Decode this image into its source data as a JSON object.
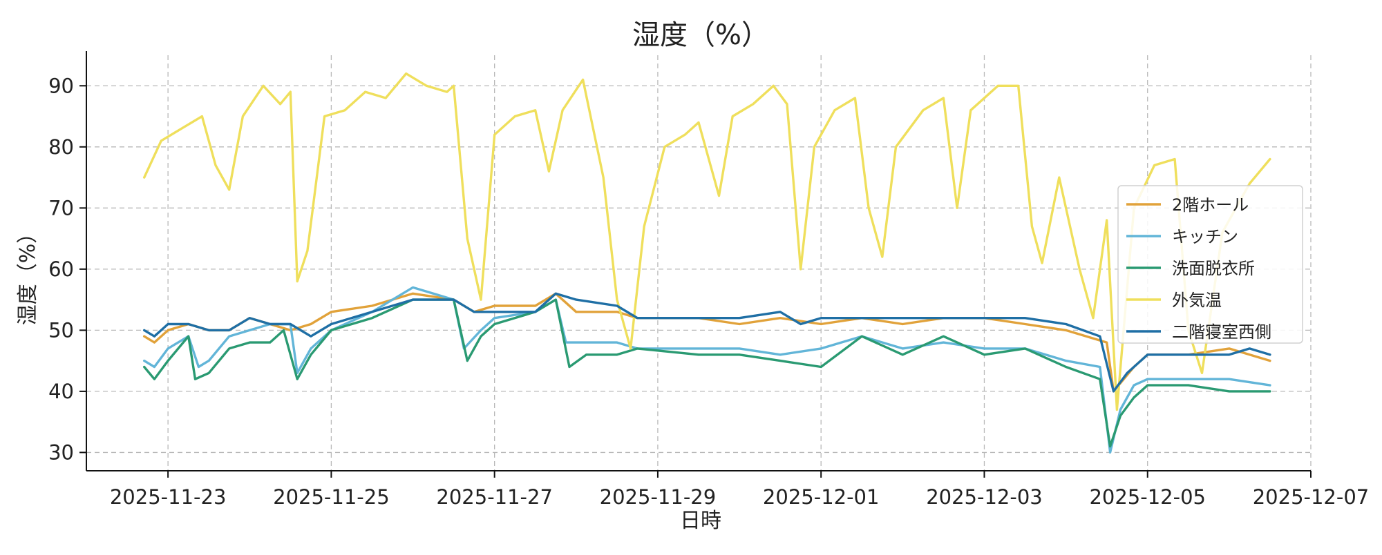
{
  "chart_data": {
    "type": "line",
    "title": "湿度（%）",
    "xlabel": "日時",
    "ylabel": "湿度（%）",
    "x_range": [
      "2025-11-22",
      "2025-12-07"
    ],
    "ylim": [
      27,
      95
    ],
    "x_ticks": [
      "2025-11-23",
      "2025-11-25",
      "2025-11-27",
      "2025-11-29",
      "2025-12-01",
      "2025-12-03",
      "2025-12-05",
      "2025-12-07"
    ],
    "y_ticks": [
      30,
      40,
      50,
      60,
      70,
      80,
      90
    ],
    "grid": true,
    "legend_position": "right",
    "series": [
      {
        "name": "2階ホール",
        "color": "#E1A23A",
        "points": [
          [
            "2025-11-22 17:00",
            49
          ],
          [
            "2025-11-22 20:00",
            48
          ],
          [
            "2025-11-23 00:00",
            50
          ],
          [
            "2025-11-23 06:00",
            51
          ],
          [
            "2025-11-23 12:00",
            50
          ],
          [
            "2025-11-23 18:00",
            50
          ],
          [
            "2025-11-24 00:00",
            52
          ],
          [
            "2025-11-24 06:00",
            51
          ],
          [
            "2025-11-24 12:00",
            50
          ],
          [
            "2025-11-24 18:00",
            51
          ],
          [
            "2025-11-25 00:00",
            53
          ],
          [
            "2025-11-25 12:00",
            54
          ],
          [
            "2025-11-26 00:00",
            56
          ],
          [
            "2025-11-26 12:00",
            55
          ],
          [
            "2025-11-26 18:00",
            53
          ],
          [
            "2025-11-27 00:00",
            54
          ],
          [
            "2025-11-27 12:00",
            54
          ],
          [
            "2025-11-27 18:00",
            56
          ],
          [
            "2025-11-28 00:00",
            53
          ],
          [
            "2025-11-28 12:00",
            53
          ],
          [
            "2025-11-28 18:00",
            52
          ],
          [
            "2025-11-29 12:00",
            52
          ],
          [
            "2025-11-30 00:00",
            51
          ],
          [
            "2025-11-30 12:00",
            52
          ],
          [
            "2025-12-01 00:00",
            51
          ],
          [
            "2025-12-01 12:00",
            52
          ],
          [
            "2025-12-02 00:00",
            51
          ],
          [
            "2025-12-02 12:00",
            52
          ],
          [
            "2025-12-03 00:00",
            52
          ],
          [
            "2025-12-03 12:00",
            51
          ],
          [
            "2025-12-04 00:00",
            50
          ],
          [
            "2025-12-04 06:00",
            49
          ],
          [
            "2025-12-04 12:00",
            48
          ],
          [
            "2025-12-04 14:00",
            40
          ],
          [
            "2025-12-04 20:00",
            44
          ],
          [
            "2025-12-05 00:00",
            46
          ],
          [
            "2025-12-05 12:00",
            46
          ],
          [
            "2025-12-06 00:00",
            47
          ],
          [
            "2025-12-06 06:00",
            46
          ],
          [
            "2025-12-06 12:00",
            45
          ]
        ]
      },
      {
        "name": "キッチン",
        "color": "#62B5D8",
        "points": [
          [
            "2025-11-22 17:00",
            45
          ],
          [
            "2025-11-22 20:00",
            44
          ],
          [
            "2025-11-23 00:00",
            47
          ],
          [
            "2025-11-23 06:00",
            49
          ],
          [
            "2025-11-23 09:00",
            44
          ],
          [
            "2025-11-23 12:00",
            45
          ],
          [
            "2025-11-23 18:00",
            49
          ],
          [
            "2025-11-24 00:00",
            50
          ],
          [
            "2025-11-24 06:00",
            51
          ],
          [
            "2025-11-24 12:00",
            51
          ],
          [
            "2025-11-24 14:00",
            43
          ],
          [
            "2025-11-24 18:00",
            47
          ],
          [
            "2025-11-25 00:00",
            50
          ],
          [
            "2025-11-25 12:00",
            53
          ],
          [
            "2025-11-26 00:00",
            57
          ],
          [
            "2025-11-26 06:00",
            56
          ],
          [
            "2025-11-26 12:00",
            55
          ],
          [
            "2025-11-26 15:00",
            47
          ],
          [
            "2025-11-26 20:00",
            50
          ],
          [
            "2025-11-27 00:00",
            52
          ],
          [
            "2025-11-27 12:00",
            53
          ],
          [
            "2025-11-27 18:00",
            55
          ],
          [
            "2025-11-27 21:00",
            48
          ],
          [
            "2025-11-28 00:00",
            48
          ],
          [
            "2025-11-28 12:00",
            48
          ],
          [
            "2025-11-28 18:00",
            47
          ],
          [
            "2025-11-29 12:00",
            47
          ],
          [
            "2025-11-30 00:00",
            47
          ],
          [
            "2025-11-30 12:00",
            46
          ],
          [
            "2025-12-01 00:00",
            47
          ],
          [
            "2025-12-01 12:00",
            49
          ],
          [
            "2025-12-02 00:00",
            47
          ],
          [
            "2025-12-02 12:00",
            48
          ],
          [
            "2025-12-03 00:00",
            47
          ],
          [
            "2025-12-03 12:00",
            47
          ],
          [
            "2025-12-04 00:00",
            45
          ],
          [
            "2025-12-04 10:00",
            44
          ],
          [
            "2025-12-04 13:00",
            30
          ],
          [
            "2025-12-04 16:00",
            37
          ],
          [
            "2025-12-04 20:00",
            41
          ],
          [
            "2025-12-05 00:00",
            42
          ],
          [
            "2025-12-05 12:00",
            42
          ],
          [
            "2025-12-06 00:00",
            42
          ],
          [
            "2025-12-06 12:00",
            41
          ]
        ]
      },
      {
        "name": "洗面脱衣所",
        "color": "#2A9A72",
        "points": [
          [
            "2025-11-22 17:00",
            44
          ],
          [
            "2025-11-22 20:00",
            42
          ],
          [
            "2025-11-23 00:00",
            45
          ],
          [
            "2025-11-23 06:00",
            49
          ],
          [
            "2025-11-23 08:00",
            42
          ],
          [
            "2025-11-23 12:00",
            43
          ],
          [
            "2025-11-23 18:00",
            47
          ],
          [
            "2025-11-24 00:00",
            48
          ],
          [
            "2025-11-24 06:00",
            48
          ],
          [
            "2025-11-24 10:00",
            50
          ],
          [
            "2025-11-24 14:00",
            42
          ],
          [
            "2025-11-24 18:00",
            46
          ],
          [
            "2025-11-25 00:00",
            50
          ],
          [
            "2025-11-25 12:00",
            52
          ],
          [
            "2025-11-26 00:00",
            55
          ],
          [
            "2025-11-26 06:00",
            55
          ],
          [
            "2025-11-26 12:00",
            55
          ],
          [
            "2025-11-26 16:00",
            45
          ],
          [
            "2025-11-26 20:00",
            49
          ],
          [
            "2025-11-27 00:00",
            51
          ],
          [
            "2025-11-27 12:00",
            53
          ],
          [
            "2025-11-27 18:00",
            55
          ],
          [
            "2025-11-27 22:00",
            44
          ],
          [
            "2025-11-28 03:00",
            46
          ],
          [
            "2025-11-28 12:00",
            46
          ],
          [
            "2025-11-28 18:00",
            47
          ],
          [
            "2025-11-29 12:00",
            46
          ],
          [
            "2025-11-30 00:00",
            46
          ],
          [
            "2025-11-30 12:00",
            45
          ],
          [
            "2025-12-01 00:00",
            44
          ],
          [
            "2025-12-01 12:00",
            49
          ],
          [
            "2025-12-02 00:00",
            46
          ],
          [
            "2025-12-02 12:00",
            49
          ],
          [
            "2025-12-03 00:00",
            46
          ],
          [
            "2025-12-03 12:00",
            47
          ],
          [
            "2025-12-04 00:00",
            44
          ],
          [
            "2025-12-04 10:00",
            42
          ],
          [
            "2025-12-04 13:00",
            31
          ],
          [
            "2025-12-04 16:00",
            36
          ],
          [
            "2025-12-04 20:00",
            39
          ],
          [
            "2025-12-05 00:00",
            41
          ],
          [
            "2025-12-05 12:00",
            41
          ],
          [
            "2025-12-06 00:00",
            40
          ],
          [
            "2025-12-06 12:00",
            40
          ]
        ]
      },
      {
        "name": "外気温",
        "color": "#EFDF5C",
        "points": [
          [
            "2025-11-22 17:00",
            75
          ],
          [
            "2025-11-22 22:00",
            81
          ],
          [
            "2025-11-23 04:00",
            83
          ],
          [
            "2025-11-23 10:00",
            85
          ],
          [
            "2025-11-23 14:00",
            77
          ],
          [
            "2025-11-23 18:00",
            73
          ],
          [
            "2025-11-23 22:00",
            85
          ],
          [
            "2025-11-24 04:00",
            90
          ],
          [
            "2025-11-24 09:00",
            87
          ],
          [
            "2025-11-24 12:00",
            89
          ],
          [
            "2025-11-24 14:00",
            58
          ],
          [
            "2025-11-24 17:00",
            63
          ],
          [
            "2025-11-24 22:00",
            85
          ],
          [
            "2025-11-25 04:00",
            86
          ],
          [
            "2025-11-25 10:00",
            89
          ],
          [
            "2025-11-25 16:00",
            88
          ],
          [
            "2025-11-25 22:00",
            92
          ],
          [
            "2025-11-26 04:00",
            90
          ],
          [
            "2025-11-26 10:00",
            89
          ],
          [
            "2025-11-26 12:00",
            90
          ],
          [
            "2025-11-26 16:00",
            65
          ],
          [
            "2025-11-26 20:00",
            55
          ],
          [
            "2025-11-27 00:00",
            82
          ],
          [
            "2025-11-27 06:00",
            85
          ],
          [
            "2025-11-27 12:00",
            86
          ],
          [
            "2025-11-27 16:00",
            76
          ],
          [
            "2025-11-27 20:00",
            86
          ],
          [
            "2025-11-28 02:00",
            91
          ],
          [
            "2025-11-28 08:00",
            75
          ],
          [
            "2025-11-28 12:00",
            55
          ],
          [
            "2025-11-28 16:00",
            47
          ],
          [
            "2025-11-28 20:00",
            67
          ],
          [
            "2025-11-29 02:00",
            80
          ],
          [
            "2025-11-29 08:00",
            82
          ],
          [
            "2025-11-29 12:00",
            84
          ],
          [
            "2025-11-29 18:00",
            72
          ],
          [
            "2025-11-29 22:00",
            85
          ],
          [
            "2025-11-30 04:00",
            87
          ],
          [
            "2025-11-30 10:00",
            90
          ],
          [
            "2025-11-30 14:00",
            87
          ],
          [
            "2025-11-30 18:00",
            60
          ],
          [
            "2025-11-30 22:00",
            80
          ],
          [
            "2025-12-01 04:00",
            86
          ],
          [
            "2025-12-01 10:00",
            88
          ],
          [
            "2025-12-01 14:00",
            70
          ],
          [
            "2025-12-01 18:00",
            62
          ],
          [
            "2025-12-01 22:00",
            80
          ],
          [
            "2025-12-02 06:00",
            86
          ],
          [
            "2025-12-02 12:00",
            88
          ],
          [
            "2025-12-02 16:00",
            70
          ],
          [
            "2025-12-02 20:00",
            86
          ],
          [
            "2025-12-03 04:00",
            90
          ],
          [
            "2025-12-03 10:00",
            90
          ],
          [
            "2025-12-03 14:00",
            67
          ],
          [
            "2025-12-03 17:00",
            61
          ],
          [
            "2025-12-03 22:00",
            75
          ],
          [
            "2025-12-04 04:00",
            60
          ],
          [
            "2025-12-04 08:00",
            52
          ],
          [
            "2025-12-04 12:00",
            68
          ],
          [
            "2025-12-04 15:00",
            37
          ],
          [
            "2025-12-04 20:00",
            70
          ],
          [
            "2025-12-05 02:00",
            77
          ],
          [
            "2025-12-05 08:00",
            78
          ],
          [
            "2025-12-05 12:00",
            50
          ],
          [
            "2025-12-05 16:00",
            43
          ],
          [
            "2025-12-05 22:00",
            66
          ],
          [
            "2025-12-06 06:00",
            74
          ],
          [
            "2025-12-06 12:00",
            78
          ]
        ]
      },
      {
        "name": "二階寝室西側",
        "color": "#1F6FA5",
        "points": [
          [
            "2025-11-22 17:00",
            50
          ],
          [
            "2025-11-22 20:00",
            49
          ],
          [
            "2025-11-23 00:00",
            51
          ],
          [
            "2025-11-23 06:00",
            51
          ],
          [
            "2025-11-23 12:00",
            50
          ],
          [
            "2025-11-23 18:00",
            50
          ],
          [
            "2025-11-24 00:00",
            52
          ],
          [
            "2025-11-24 06:00",
            51
          ],
          [
            "2025-11-24 12:00",
            51
          ],
          [
            "2025-11-24 18:00",
            49
          ],
          [
            "2025-11-25 00:00",
            51
          ],
          [
            "2025-11-25 12:00",
            53
          ],
          [
            "2025-11-26 00:00",
            55
          ],
          [
            "2025-11-26 12:00",
            55
          ],
          [
            "2025-11-26 18:00",
            53
          ],
          [
            "2025-11-27 00:00",
            53
          ],
          [
            "2025-11-27 12:00",
            53
          ],
          [
            "2025-11-27 18:00",
            56
          ],
          [
            "2025-11-28 00:00",
            55
          ],
          [
            "2025-11-28 12:00",
            54
          ],
          [
            "2025-11-28 18:00",
            52
          ],
          [
            "2025-11-29 12:00",
            52
          ],
          [
            "2025-11-30 00:00",
            52
          ],
          [
            "2025-11-30 12:00",
            53
          ],
          [
            "2025-11-30 18:00",
            51
          ],
          [
            "2025-12-01 00:00",
            52
          ],
          [
            "2025-12-01 12:00",
            52
          ],
          [
            "2025-12-02 00:00",
            52
          ],
          [
            "2025-12-02 12:00",
            52
          ],
          [
            "2025-12-03 00:00",
            52
          ],
          [
            "2025-12-03 12:00",
            52
          ],
          [
            "2025-12-04 00:00",
            51
          ],
          [
            "2025-12-04 10:00",
            49
          ],
          [
            "2025-12-04 14:00",
            40
          ],
          [
            "2025-12-04 18:00",
            43
          ],
          [
            "2025-12-05 00:00",
            46
          ],
          [
            "2025-12-05 12:00",
            46
          ],
          [
            "2025-12-06 00:00",
            46
          ],
          [
            "2025-12-06 06:00",
            47
          ],
          [
            "2025-12-06 12:00",
            46
          ]
        ]
      }
    ]
  }
}
